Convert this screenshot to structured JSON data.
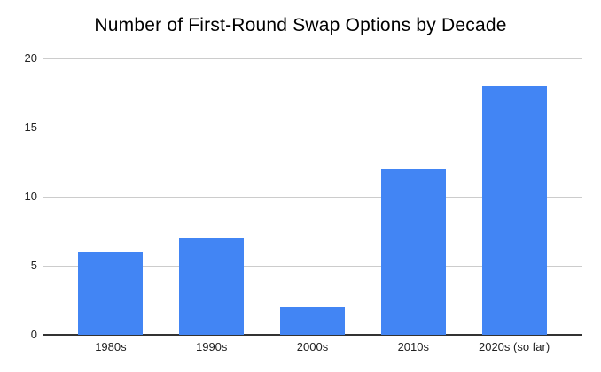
{
  "chart_data": {
    "type": "bar",
    "title": "Number of First-Round Swap Options by Decade",
    "categories": [
      "1980s",
      "1990s",
      "2000s",
      "2010s",
      "2020s (so far)"
    ],
    "values": [
      6,
      7,
      2,
      12,
      18
    ],
    "xlabel": "",
    "ylabel": "",
    "ylim": [
      0,
      20
    ],
    "yticks": [
      0,
      5,
      10,
      15,
      20
    ],
    "grid": true,
    "legend_position": "none",
    "colors": {
      "bar": "#4285f4",
      "gridline": "#cccccc",
      "baseline": "#333333",
      "tick_label": "#222222",
      "title": "#000000",
      "background": "#ffffff"
    }
  }
}
